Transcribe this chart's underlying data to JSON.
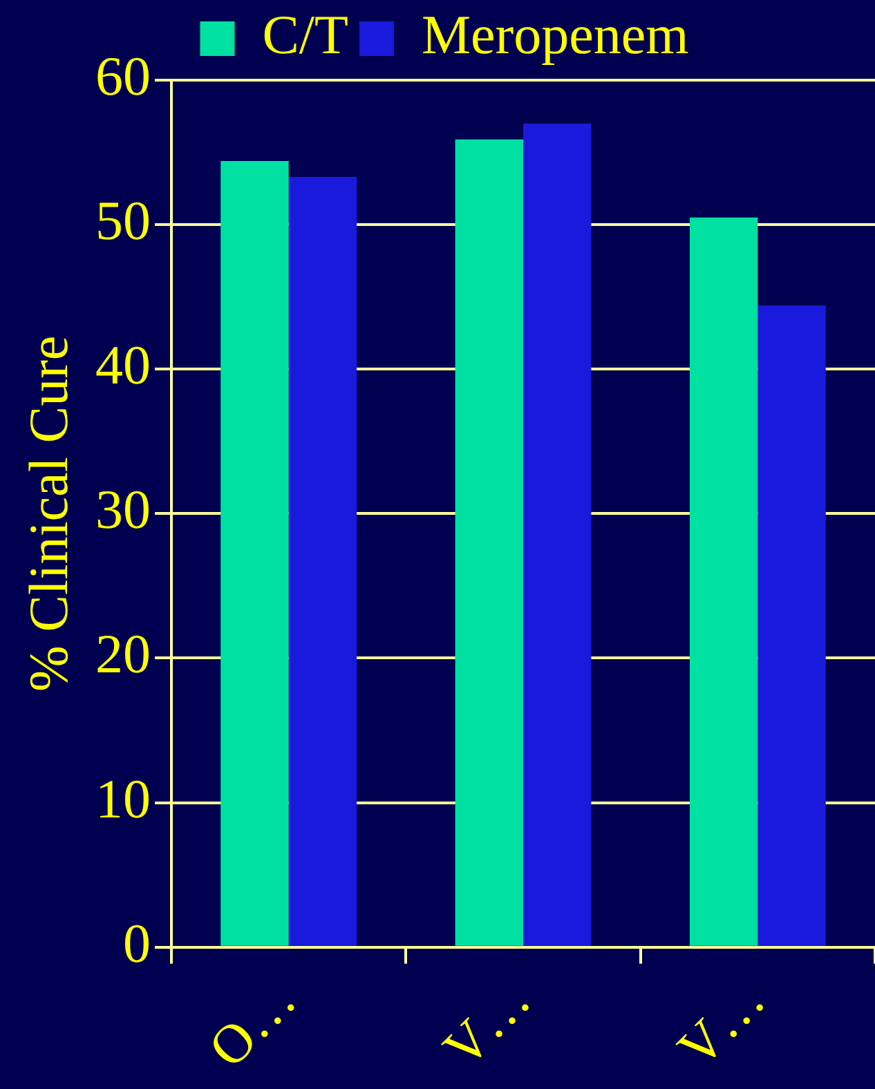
{
  "chart_data": {
    "type": "bar",
    "ylabel": "% Clinical Cure",
    "categories": [
      "O…",
      "V…",
      "V…"
    ],
    "series": [
      {
        "name": "C/T",
        "color": "#00e0a0",
        "values": [
          54.4,
          55.9,
          50.5
        ]
      },
      {
        "name": "Meropenem",
        "color": "#1a1adc",
        "values": [
          53.3,
          57.0,
          44.4
        ]
      }
    ],
    "ylim": [
      0,
      60
    ],
    "yticks": [
      0,
      10,
      20,
      30,
      40,
      50,
      60
    ],
    "grid": "y",
    "legend": "top"
  }
}
